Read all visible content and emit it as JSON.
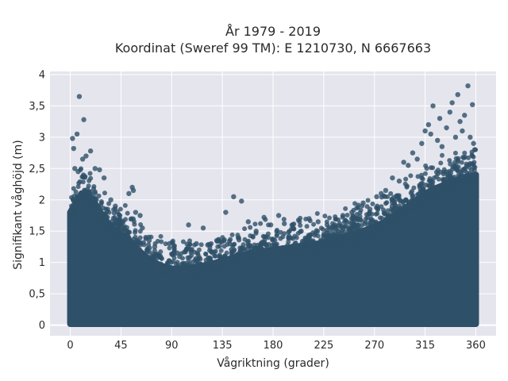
{
  "chart_data": {
    "type": "scatter",
    "title": "År 1979 - 2019",
    "subtitle": "Koordinat (Sweref 99 TM): E 1210730, N 6667663",
    "xlabel": "Vågriktning (grader)",
    "ylabel": "Signifikant våghöjd (m)",
    "xlim": [
      -18,
      378
    ],
    "ylim": [
      -0.17,
      4.05
    ],
    "xticks": [
      0,
      45,
      90,
      135,
      180,
      225,
      270,
      315,
      360
    ],
    "xtick_labels": [
      "0",
      "45",
      "90",
      "135",
      "180",
      "225",
      "270",
      "315",
      "360"
    ],
    "yticks": [
      0,
      0.5,
      1,
      1.5,
      2,
      2.5,
      3,
      3.5,
      4
    ],
    "ytick_labels": [
      "0",
      "0,5",
      "1",
      "1,5",
      "2",
      "2,5",
      "3",
      "3,5",
      "4"
    ],
    "grid": true,
    "marker_color": "#2e5068",
    "background": "#e5e5ee",
    "envelope": {
      "description": "Dense band from 0 up to an upper envelope that varies with direction",
      "x": [
        0,
        10,
        20,
        30,
        40,
        50,
        60,
        70,
        80,
        90,
        100,
        120,
        140,
        160,
        180,
        200,
        220,
        240,
        260,
        280,
        300,
        320,
        340,
        360
      ],
      "upper": [
        1.9,
        2.2,
        2.1,
        1.8,
        1.6,
        1.5,
        1.3,
        1.15,
        1.05,
        1.0,
        1.0,
        1.05,
        1.15,
        1.25,
        1.3,
        1.35,
        1.4,
        1.5,
        1.6,
        1.75,
        2.0,
        2.25,
        2.4,
        2.5
      ]
    },
    "series": [
      {
        "values": [
          [
            8,
            3.65
          ],
          [
            12,
            3.28
          ],
          [
            2,
            2.98
          ],
          [
            6,
            3.05
          ],
          [
            3,
            2.82
          ],
          [
            14,
            2.7
          ],
          [
            18,
            2.78
          ],
          [
            22,
            2.5
          ],
          [
            26,
            2.48
          ],
          [
            11,
            2.65
          ],
          [
            4,
            2.5
          ],
          [
            7,
            2.45
          ],
          [
            30,
            2.35
          ],
          [
            36,
            2.0
          ],
          [
            40,
            1.9
          ],
          [
            44,
            1.75
          ],
          [
            47,
            1.65
          ],
          [
            52,
            2.1
          ],
          [
            55,
            2.2
          ],
          [
            56,
            2.15
          ],
          [
            58,
            1.8
          ],
          [
            62,
            1.75
          ],
          [
            64,
            1.55
          ],
          [
            67,
            1.4
          ],
          [
            70,
            1.35
          ],
          [
            75,
            1.25
          ],
          [
            80,
            1.1
          ],
          [
            88,
            1.3
          ],
          [
            92,
            1.25
          ],
          [
            95,
            1.15
          ],
          [
            105,
            1.6
          ],
          [
            112,
            1.3
          ],
          [
            118,
            1.55
          ],
          [
            122,
            1.28
          ],
          [
            130,
            1.35
          ],
          [
            138,
            1.8
          ],
          [
            145,
            2.05
          ],
          [
            152,
            1.98
          ],
          [
            158,
            1.65
          ],
          [
            165,
            1.5
          ],
          [
            172,
            1.72
          ],
          [
            178,
            1.6
          ],
          [
            185,
            1.75
          ],
          [
            190,
            1.62
          ],
          [
            198,
            1.55
          ],
          [
            205,
            1.5
          ],
          [
            212,
            1.7
          ],
          [
            220,
            1.65
          ],
          [
            228,
            1.6
          ],
          [
            235,
            1.6
          ],
          [
            242,
            1.75
          ],
          [
            250,
            1.8
          ],
          [
            255,
            1.7
          ],
          [
            260,
            1.95
          ],
          [
            266,
            1.85
          ],
          [
            272,
            2.05
          ],
          [
            276,
            2.1
          ],
          [
            280,
            2.15
          ],
          [
            286,
            2.35
          ],
          [
            292,
            2.3
          ],
          [
            296,
            2.6
          ],
          [
            300,
            2.55
          ],
          [
            304,
            2.75
          ],
          [
            308,
            2.65
          ],
          [
            312,
            2.9
          ],
          [
            315,
            3.1
          ],
          [
            318,
            3.2
          ],
          [
            320,
            3.05
          ],
          [
            322,
            3.5
          ],
          [
            326,
            2.95
          ],
          [
            328,
            3.3
          ],
          [
            330,
            2.85
          ],
          [
            334,
            3.15
          ],
          [
            337,
            3.4
          ],
          [
            339,
            3.55
          ],
          [
            342,
            3.0
          ],
          [
            344,
            3.68
          ],
          [
            346,
            3.25
          ],
          [
            348,
            3.1
          ],
          [
            350,
            3.35
          ],
          [
            353,
            3.82
          ],
          [
            355,
            3.0
          ],
          [
            357,
            3.52
          ],
          [
            358,
            2.9
          ],
          [
            359,
            2.8
          ]
        ]
      }
    ]
  }
}
